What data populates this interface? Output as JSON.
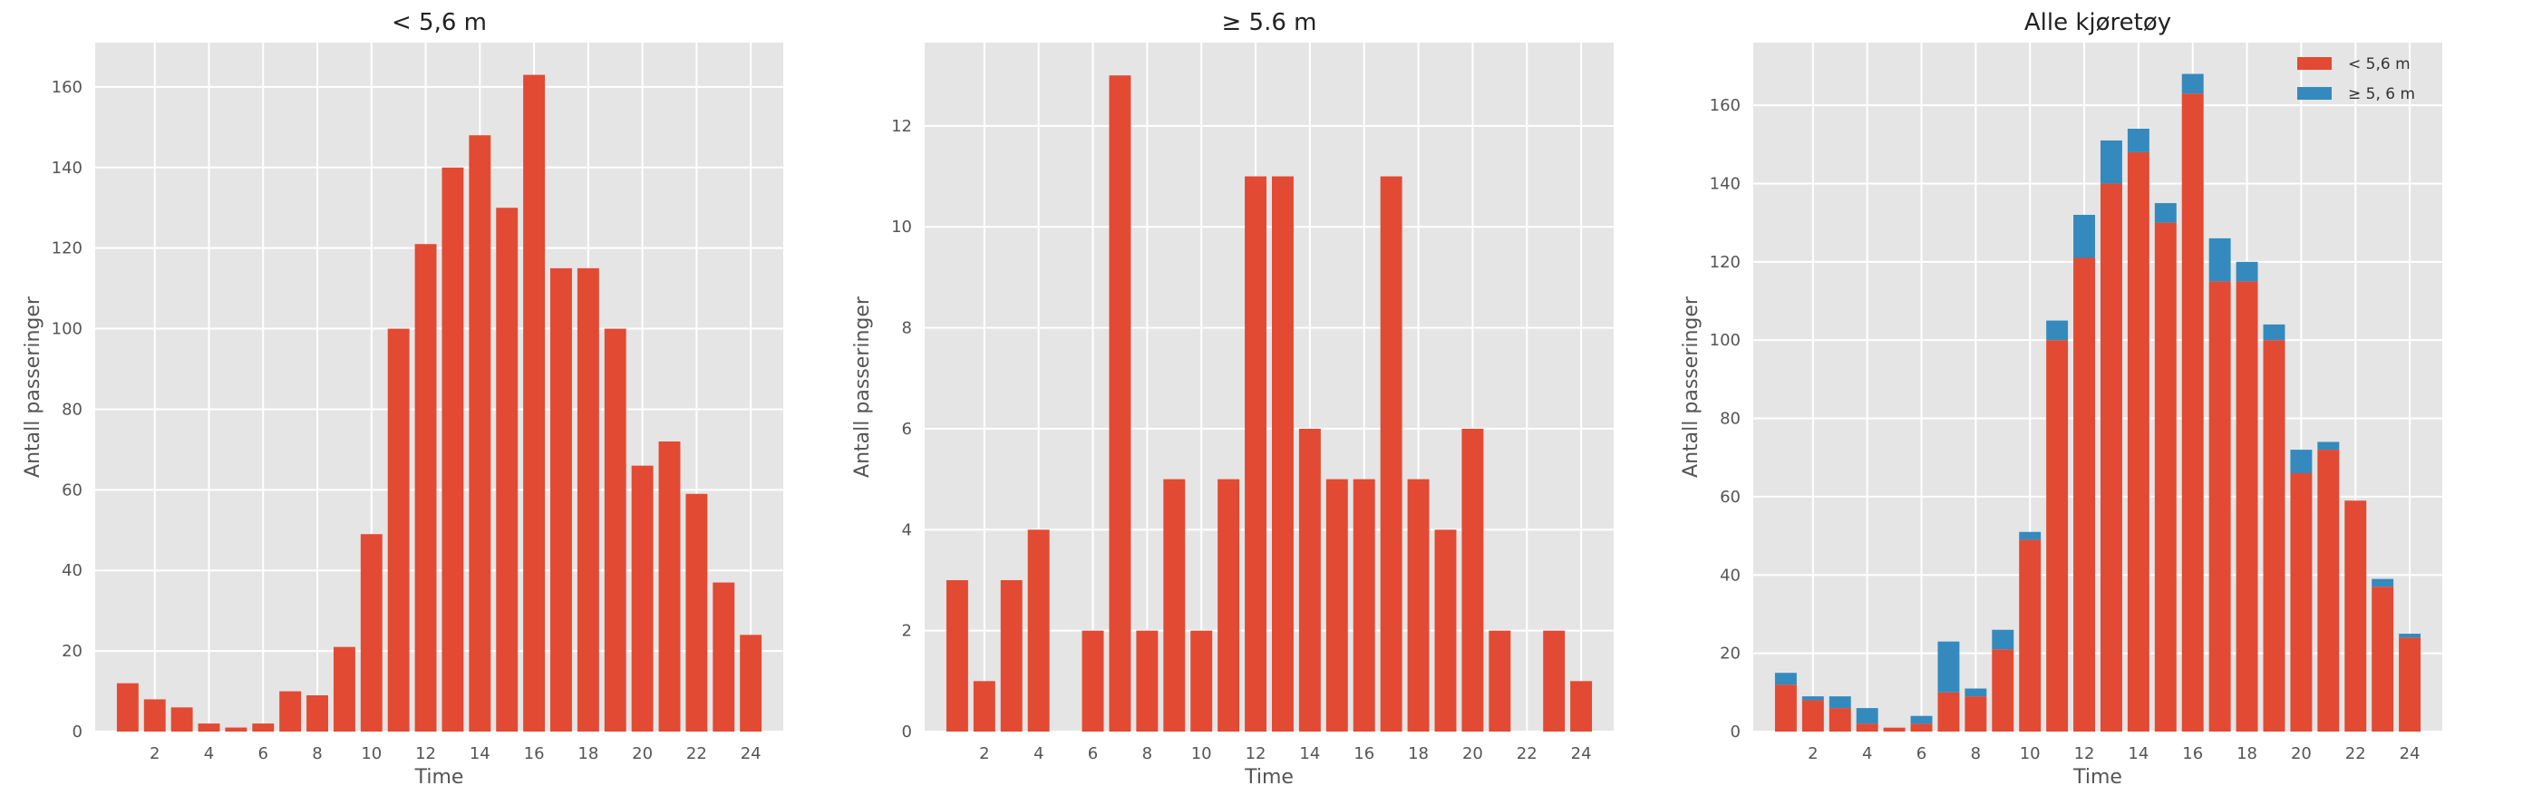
{
  "chart_data": [
    {
      "type": "bar",
      "title": "< 5,6 m",
      "xlabel": "Time",
      "ylabel": "Antall passeringer",
      "x": [
        1,
        2,
        3,
        4,
        5,
        6,
        7,
        8,
        9,
        10,
        11,
        12,
        13,
        14,
        15,
        16,
        17,
        18,
        19,
        20,
        21,
        22,
        23,
        24
      ],
      "xticks": [
        2,
        4,
        6,
        8,
        10,
        12,
        14,
        16,
        18,
        20,
        22,
        24
      ],
      "xlim": [
        -0.2,
        25.2
      ],
      "ylim": [
        0,
        171
      ],
      "yticks": [
        0,
        20,
        40,
        60,
        80,
        100,
        120,
        140,
        160
      ],
      "series": [
        {
          "color": "#e24a33",
          "values": [
            12,
            8,
            6,
            2,
            1,
            2,
            10,
            9,
            21,
            49,
            100,
            121,
            140,
            148,
            130,
            163,
            115,
            115,
            100,
            66,
            72,
            59,
            37,
            24
          ]
        }
      ],
      "grid": true
    },
    {
      "type": "bar",
      "title": "≥ 5.6 m",
      "xlabel": "Time",
      "ylabel": "Antall passeringer",
      "x": [
        1,
        2,
        3,
        4,
        5,
        6,
        7,
        8,
        9,
        10,
        11,
        12,
        13,
        14,
        15,
        16,
        17,
        18,
        19,
        20,
        21,
        22,
        23,
        24
      ],
      "xticks": [
        2,
        4,
        6,
        8,
        10,
        12,
        14,
        16,
        18,
        20,
        22,
        24
      ],
      "xlim": [
        -0.2,
        25.2
      ],
      "ylim": [
        0,
        13.65
      ],
      "yticks": [
        0,
        2,
        4,
        6,
        8,
        10,
        12
      ],
      "series": [
        {
          "color": "#e24a33",
          "values": [
            3,
            1,
            3,
            4,
            0,
            2,
            13,
            2,
            5,
            2,
            5,
            11,
            11,
            6,
            5,
            5,
            11,
            5,
            4,
            6,
            2,
            0,
            2,
            1
          ]
        }
      ],
      "grid": true
    },
    {
      "type": "bar",
      "stacked": true,
      "title": "Alle kjøretøy",
      "xlabel": "Time",
      "ylabel": "Antall passeringer",
      "x": [
        1,
        2,
        3,
        4,
        5,
        6,
        7,
        8,
        9,
        10,
        11,
        12,
        13,
        14,
        15,
        16,
        17,
        18,
        19,
        20,
        21,
        22,
        23,
        24
      ],
      "xticks": [
        2,
        4,
        6,
        8,
        10,
        12,
        14,
        16,
        18,
        20,
        22,
        24
      ],
      "xlim": [
        -0.2,
        25.2
      ],
      "ylim": [
        0,
        176
      ],
      "yticks": [
        0,
        20,
        40,
        60,
        80,
        100,
        120,
        140,
        160
      ],
      "series": [
        {
          "name": "< 5,6 m",
          "color": "#e24a33",
          "values": [
            12,
            8,
            6,
            2,
            1,
            2,
            10,
            9,
            21,
            49,
            100,
            121,
            140,
            148,
            130,
            163,
            115,
            115,
            100,
            66,
            72,
            59,
            37,
            24
          ]
        },
        {
          "name": "≥ 5, 6 m",
          "color": "#348abd",
          "values": [
            3,
            1,
            3,
            4,
            0,
            2,
            13,
            2,
            5,
            2,
            5,
            11,
            11,
            6,
            5,
            5,
            11,
            5,
            4,
            6,
            2,
            0,
            2,
            1
          ]
        }
      ],
      "legend": "top-right",
      "grid": true
    }
  ]
}
